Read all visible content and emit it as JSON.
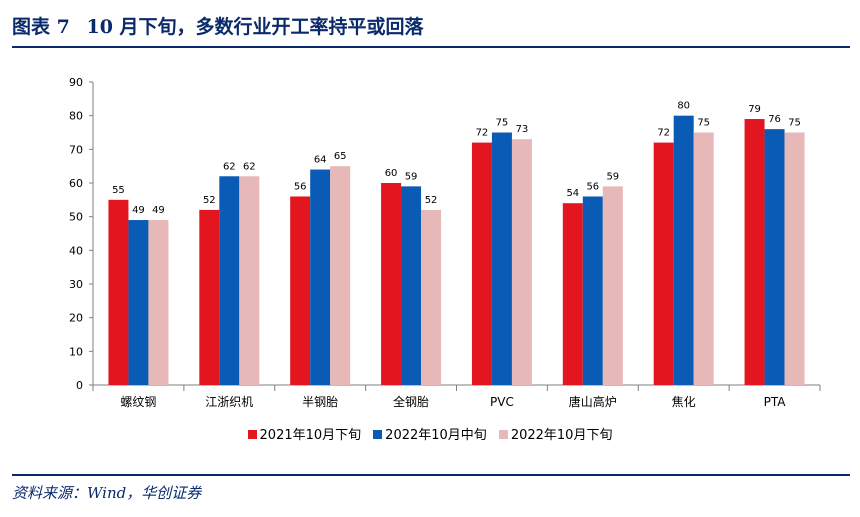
{
  "title": {
    "fig": "图表 7",
    "text": "10 月下旬，多数行业开工率持平或回落"
  },
  "source": "资料来源：Wind，华创证券",
  "colors": {
    "accent": "#0a2a6b",
    "series": [
      "#e3151f",
      "#0a5bb5",
      "#e6b8b7"
    ]
  },
  "chart_data": {
    "type": "bar",
    "title": "",
    "xlabel": "",
    "ylabel": "",
    "ylim": [
      0,
      90
    ],
    "yticks": [
      0,
      10,
      20,
      30,
      40,
      50,
      60,
      70,
      80,
      90
    ],
    "grid": false,
    "legend": "bottom",
    "categories": [
      "螺纹钢",
      "江浙织机",
      "半钢胎",
      "全钢胎",
      "PVC",
      "唐山高炉",
      "焦化",
      "PTA"
    ],
    "series": [
      {
        "name": "2021年10月下旬",
        "color": "#e3151f",
        "values": [
          55,
          52,
          56,
          60,
          72,
          54,
          72,
          79
        ]
      },
      {
        "name": "2022年10月中旬",
        "color": "#0a5bb5",
        "values": [
          49,
          62,
          64,
          59,
          75,
          56,
          80,
          76
        ]
      },
      {
        "name": "2022年10月下旬",
        "color": "#e6b8b7",
        "values": [
          49,
          62,
          65,
          52,
          73,
          59,
          75,
          75
        ]
      }
    ]
  }
}
